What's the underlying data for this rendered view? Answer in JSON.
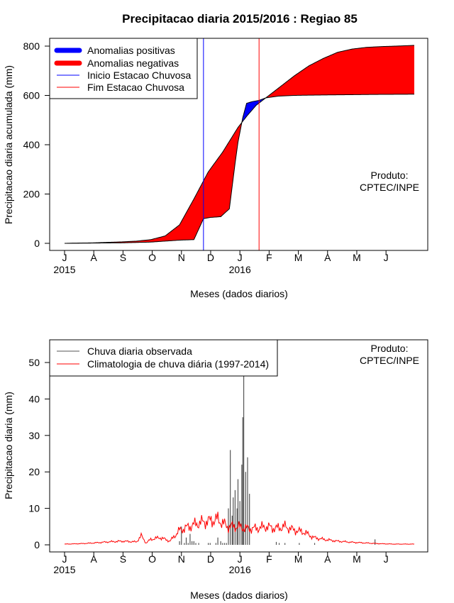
{
  "title": "Precipitacao diaria 2015/2016 : Regiao 85",
  "chart_data": [
    {
      "type": "area",
      "ylabel": "Precipitacao diaria acumulada (mm)",
      "xlabel": "Meses (dados diarios)",
      "ylim": [
        0,
        800
      ],
      "yticks": [
        0,
        200,
        400,
        600,
        800
      ],
      "months": [
        "J",
        "A",
        "S",
        "O",
        "N",
        "D",
        "J",
        "F",
        "M",
        "A",
        "M",
        "J"
      ],
      "year_labels": [
        {
          "month_index": 0,
          "text": "2015"
        },
        {
          "month_index": 6,
          "text": "2016"
        }
      ],
      "note_lines": [
        "Produto:",
        "CPTEC/INPE"
      ],
      "legend": [
        "Anomalias positivas",
        "Anomalias negativas",
        "Inicio Estacao Chuvosa",
        "Fim Estacao Chuvosa"
      ],
      "colors": {
        "positive": "#0000ff",
        "negative": "#ff0000",
        "start": "#0000ff",
        "end": "#ff0000"
      },
      "rainy_season_start_day": 145,
      "rainy_season_end_day": 203,
      "observed_accumulated": {
        "days": [
          0,
          30,
          60,
          90,
          120,
          135,
          145,
          152,
          163,
          172,
          178,
          181,
          186,
          190,
          196,
          203,
          210,
          223,
          240,
          255,
          275,
          300,
          322,
          365
        ],
        "values": [
          0,
          1,
          2,
          5,
          13,
          15,
          100,
          105,
          108,
          140,
          325,
          410,
          510,
          568,
          575,
          580,
          590,
          597,
          600,
          601,
          602,
          603,
          604,
          605
        ]
      },
      "climatology_accumulated": {
        "days": [
          0,
          30,
          45,
          60,
          75,
          90,
          105,
          120,
          135,
          150,
          165,
          181,
          190,
          200,
          210,
          225,
          240,
          255,
          270,
          285,
          300,
          315,
          330,
          345,
          365
        ],
        "values": [
          0,
          2,
          4,
          6,
          9,
          15,
          30,
          75,
          180,
          290,
          370,
          470,
          515,
          560,
          590,
          635,
          680,
          720,
          750,
          775,
          788,
          795,
          798,
          800,
          803
        ]
      }
    },
    {
      "type": "bar",
      "ylabel": "Precipitacao diaria (mm)",
      "xlabel": "Meses (dados diarios)",
      "ylim": [
        0,
        55
      ],
      "yticks": [
        0,
        10,
        20,
        30,
        40,
        50
      ],
      "months": [
        "J",
        "A",
        "S",
        "O",
        "N",
        "D",
        "J",
        "F",
        "M",
        "A",
        "M",
        "J"
      ],
      "year_labels": [
        {
          "month_index": 0,
          "text": "2015"
        },
        {
          "month_index": 6,
          "text": "2016"
        }
      ],
      "note_lines": [
        "Produto:",
        "CPTEC/INPE"
      ],
      "legend": [
        "Chuva diaria observada",
        "Climatologia de chuva diária (1997-2014)"
      ],
      "colors": {
        "observed": "#555555",
        "climatology": "#ff0000"
      },
      "observed_daily": {
        "days": [
          120,
          122,
          125,
          127,
          129,
          131,
          133,
          135,
          137,
          140,
          150,
          152,
          158,
          160,
          163,
          165,
          167,
          169,
          171,
          173,
          175,
          176,
          178,
          180,
          181,
          183,
          185,
          186,
          187,
          189,
          191,
          193,
          221,
          224,
          230,
          245,
          261,
          324
        ],
        "values": [
          1,
          5,
          0.5,
          2,
          0.5,
          3,
          1,
          1,
          0.5,
          0.5,
          0.5,
          0.5,
          0.5,
          2,
          1,
          0.5,
          0.5,
          0.5,
          10,
          26,
          8,
          13,
          15,
          10,
          18,
          12,
          22,
          35,
          55,
          20,
          24,
          14,
          0.8,
          0.5,
          0.5,
          0.5,
          0.5,
          1.5
        ]
      },
      "climatology_daily": {
        "days": [
          0,
          15,
          30,
          45,
          60,
          75,
          80,
          85,
          90,
          100,
          110,
          120,
          130,
          140,
          150,
          160,
          170,
          180,
          190,
          200,
          210,
          220,
          230,
          240,
          250,
          260,
          270,
          285,
          300,
          315,
          330,
          345,
          365
        ],
        "values": [
          0.2,
          0.3,
          0.5,
          0.8,
          1,
          0.8,
          2.5,
          0.5,
          1.5,
          2,
          1,
          4,
          5,
          6,
          6.5,
          7,
          5,
          5,
          4.5,
          4.5,
          5,
          4.5,
          5,
          4,
          3.5,
          2,
          1.5,
          1,
          0.7,
          0.5,
          0.3,
          0.2,
          0.2
        ]
      }
    }
  ]
}
